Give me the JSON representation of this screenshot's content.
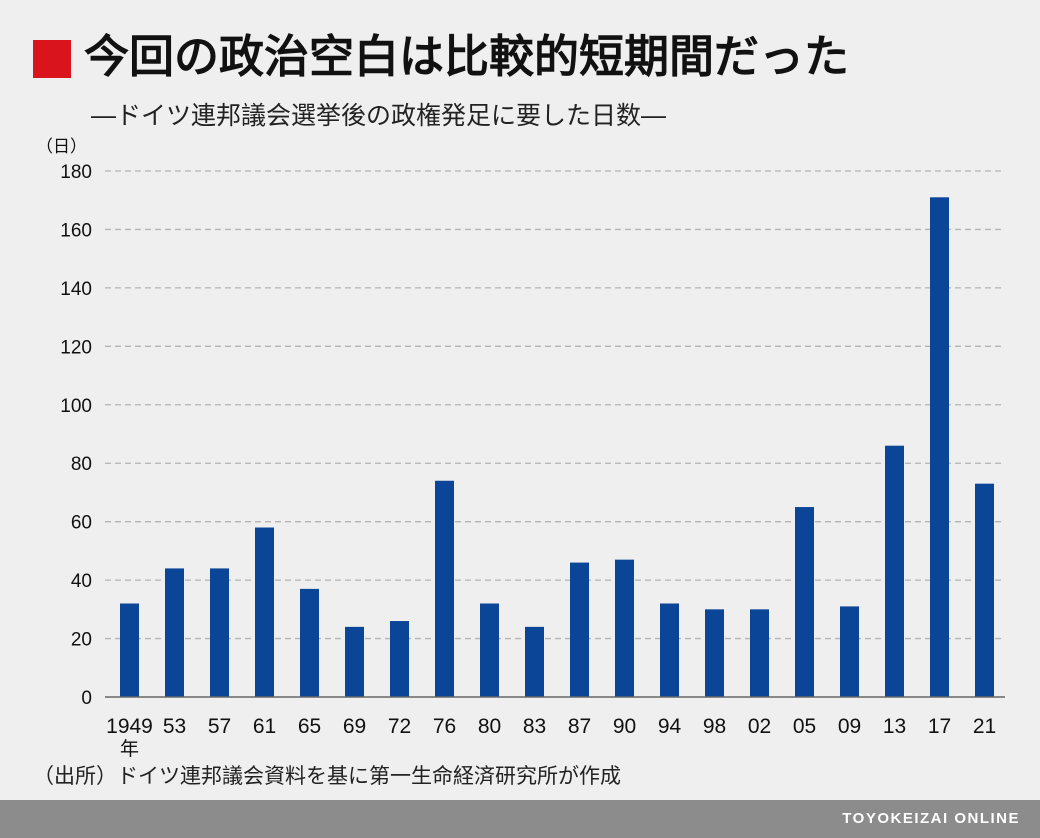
{
  "colors": {
    "background": "#efefef",
    "accent": "#d9141c",
    "bar": "#0b4598",
    "grid": "#b4b4b4",
    "axis": "#666666",
    "footer": "#8c8c8c"
  },
  "chart_data": {
    "type": "bar",
    "title": "今回の政治空白は比較的短期間だった",
    "subtitle": "―ドイツ連邦議会選挙後の政権発足に要した日数―",
    "ylabel": "（日）",
    "x_unit": "年",
    "categories": [
      "1949",
      "53",
      "57",
      "61",
      "65",
      "69",
      "72",
      "76",
      "80",
      "83",
      "87",
      "90",
      "94",
      "98",
      "02",
      "05",
      "09",
      "13",
      "17",
      "21"
    ],
    "values": [
      32,
      44,
      44,
      58,
      37,
      24,
      26,
      74,
      32,
      24,
      46,
      47,
      32,
      30,
      30,
      65,
      31,
      86,
      171,
      73
    ],
    "ylim": [
      0,
      180
    ],
    "yticks": [
      0,
      20,
      40,
      60,
      80,
      100,
      120,
      140,
      160,
      180
    ],
    "grid": true,
    "legend": "none"
  },
  "source": "（出所）ドイツ連邦議会資料を基に第一生命経済研究所が作成",
  "footer": {
    "brand": "TOYOKEIZAI ONLINE"
  }
}
